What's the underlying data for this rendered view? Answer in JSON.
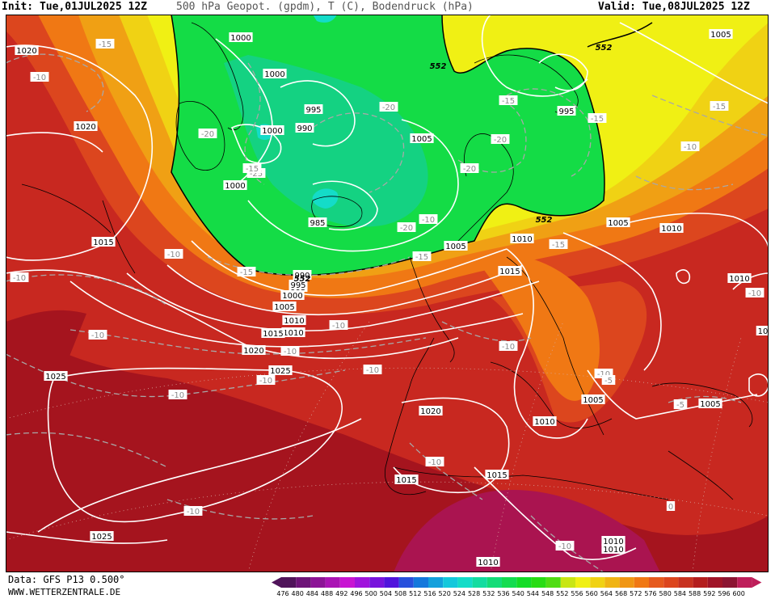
{
  "header": {
    "init": "Init: Tue,01JUL2025 12Z",
    "title": "500 hPa Geopot. (gpdm), T (C), Bodendruck (hPa)",
    "valid": "Valid: Tue,08JUL2025 12Z"
  },
  "footer": {
    "data_source": "Data: GFS P13 0.500°",
    "website": "WWW.WETTERZENTRALE.DE"
  },
  "colors": {
    "red_dark": "#a5141e",
    "red": "#c82820",
    "orange_red": "#dc461e",
    "orange": "#f07814",
    "orange_light": "#f0a014",
    "yellow": "#f0d214",
    "yellow_bright": "#f0f014",
    "green": "#14dc46",
    "green_mid": "#14d282",
    "cyan": "#14dcc8",
    "magenta_dark": "#aa1450"
  },
  "isobars": [
    {
      "label": "1020"
    },
    {
      "label": "1020"
    },
    {
      "label": "1015"
    },
    {
      "label": "1000"
    },
    {
      "label": "1000"
    },
    {
      "label": "995"
    },
    {
      "label": "1000"
    },
    {
      "label": "990"
    },
    {
      "label": "1000"
    },
    {
      "label": "985"
    },
    {
      "label": "1005"
    },
    {
      "label": "995"
    },
    {
      "label": "995"
    },
    {
      "label": "1010"
    },
    {
      "label": "990"
    },
    {
      "label": "995"
    },
    {
      "label": "1000"
    },
    {
      "label": "1005"
    },
    {
      "label": "1010"
    },
    {
      "label": "1015"
    },
    {
      "label": "1020"
    },
    {
      "label": "1025"
    },
    {
      "label": "1025"
    },
    {
      "label": "1020"
    },
    {
      "label": "1005"
    },
    {
      "label": "1010"
    },
    {
      "label": "1015"
    },
    {
      "label": "1005"
    },
    {
      "label": "1010"
    },
    {
      "label": "1010"
    },
    {
      "label": "1005"
    },
    {
      "label": "1005"
    },
    {
      "label": "1005"
    },
    {
      "label": "1010"
    },
    {
      "label": "1015"
    },
    {
      "label": "1015"
    },
    {
      "label": "1010"
    },
    {
      "label": "1010"
    },
    {
      "label": "1025"
    },
    {
      "label": "1010"
    },
    {
      "label": "10"
    }
  ],
  "temperatures": [
    {
      "label": "-15"
    },
    {
      "label": "-10"
    },
    {
      "label": "-20"
    },
    {
      "label": "-25"
    },
    {
      "label": "-20"
    },
    {
      "label": "-15"
    },
    {
      "label": "-20"
    },
    {
      "label": "-20"
    },
    {
      "label": "-15"
    },
    {
      "label": "-15"
    },
    {
      "label": "-10"
    },
    {
      "label": "-15"
    },
    {
      "label": "-10"
    },
    {
      "label": "-20"
    },
    {
      "label": "-15"
    },
    {
      "label": "-15"
    },
    {
      "label": "-10"
    },
    {
      "label": "-10"
    },
    {
      "label": "-10"
    },
    {
      "label": "-10"
    },
    {
      "label": "-10"
    },
    {
      "label": "-10"
    },
    {
      "label": "-10"
    },
    {
      "label": "-10"
    },
    {
      "label": "-10"
    },
    {
      "label": "-10"
    },
    {
      "label": "-10"
    },
    {
      "label": "-10"
    },
    {
      "label": "-5"
    },
    {
      "label": "-10"
    },
    {
      "label": "-10"
    },
    {
      "label": "0"
    },
    {
      "label": "-5"
    },
    {
      "label": "-15"
    }
  ],
  "geopot_labels": [
    {
      "label": "552"
    },
    {
      "label": "552"
    },
    {
      "label": "552"
    },
    {
      "label": "552"
    }
  ],
  "color_scale": {
    "values": [
      "476",
      "480",
      "484",
      "488",
      "492",
      "496",
      "500",
      "504",
      "508",
      "512",
      "516",
      "520",
      "524",
      "528",
      "532",
      "536",
      "540",
      "544",
      "548",
      "552",
      "556",
      "560",
      "564",
      "568",
      "572",
      "576",
      "580",
      "584",
      "588",
      "592",
      "596",
      "600"
    ],
    "colors": [
      "#50145a",
      "#6e1478",
      "#8c1496",
      "#aa14b4",
      "#c814d2",
      "#a014dc",
      "#7814dc",
      "#5014dc",
      "#2850dc",
      "#1478dc",
      "#14a0dc",
      "#14c8dc",
      "#14dcc8",
      "#14dca0",
      "#14dc78",
      "#14dc50",
      "#14dc28",
      "#28dc14",
      "#50dc14",
      "#c8e614",
      "#f0f014",
      "#f0d214",
      "#f0b414",
      "#f09614",
      "#f07814",
      "#e65a1e",
      "#dc461e",
      "#c83220",
      "#b41e1e",
      "#a01428",
      "#8c1432",
      "#be1e5a"
    ]
  }
}
